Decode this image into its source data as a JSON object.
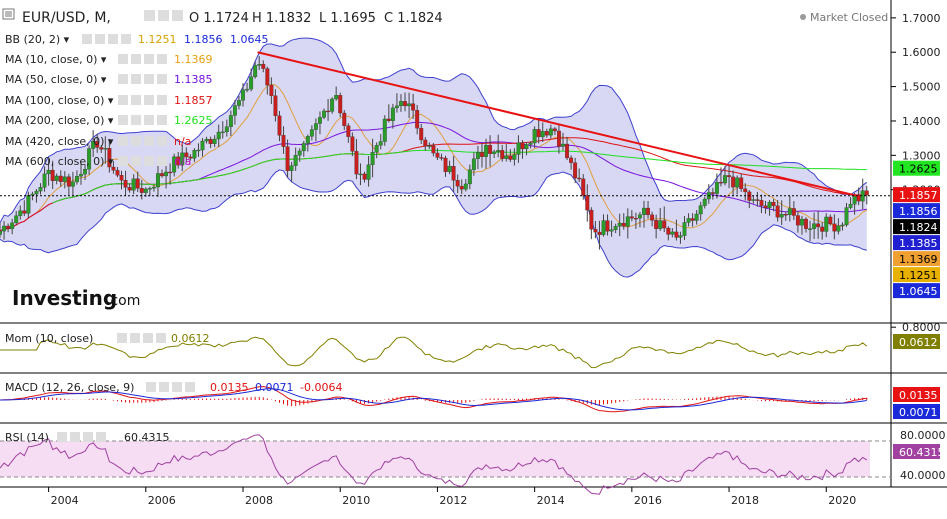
{
  "header": {
    "symbol": "EUR/USD, M,",
    "open": "O 1.1724",
    "high": "H 1.1832",
    "low": "L 1.1695",
    "close": "C 1.1824",
    "market_status": "Market Closed"
  },
  "indicators": [
    {
      "label": "BB (20, 2)",
      "values": [
        {
          "text": "1.1251",
          "color": "#d7a300"
        },
        {
          "text": "1.1856",
          "color": "#1a2ad8"
        },
        {
          "text": "1.0645",
          "color": "#1a2ad8"
        }
      ]
    },
    {
      "label": "MA (10, close, 0)",
      "values": [
        {
          "text": "1.1369",
          "color": "#e7a00f"
        }
      ]
    },
    {
      "label": "MA (50, close, 0)",
      "values": [
        {
          "text": "1.1385",
          "color": "#7a14e0"
        }
      ]
    },
    {
      "label": "MA (100, close, 0)",
      "values": [
        {
          "text": "1.1857",
          "color": "#e01313"
        }
      ]
    },
    {
      "label": "MA (200, close, 0)",
      "values": [
        {
          "text": "1.2625",
          "color": "#1fe01f"
        }
      ]
    },
    {
      "label": "MA (420, close, 0)",
      "values": [
        {
          "text": "n/a",
          "color": "#e01313"
        }
      ]
    },
    {
      "label": "MA (600, close, 0)",
      "values": [
        {
          "text": "n/a",
          "color": "#c013c0"
        }
      ]
    }
  ],
  "logo": {
    "brand": "Investing",
    "suffix": ".com"
  },
  "price_axis": {
    "ticks": [
      "1.7000",
      "1.6000",
      "1.5000",
      "1.4000",
      "1.3000",
      "1.2000",
      "0.8000"
    ]
  },
  "price_tags": [
    {
      "text": "1.2625",
      "bg": "#22e622",
      "fg": "#000000",
      "value": 1.2625
    },
    {
      "text": "1.1857",
      "bg": "#e81212",
      "fg": "#ffffff",
      "value": 1.1857
    },
    {
      "text": "1.1856",
      "bg": "#1a2ad8",
      "fg": "#ffffff",
      "value": 1.1856
    },
    {
      "text": "1.1824",
      "bg": "#000000",
      "fg": "#ffffff",
      "value": 1.1824
    },
    {
      "text": "1.1385",
      "bg": "#2020d0",
      "fg": "#ffffff",
      "value": 1.1385
    },
    {
      "text": "1.1369",
      "bg": "#f0a030",
      "fg": "#000000",
      "value": 1.1369
    },
    {
      "text": "1.1251",
      "bg": "#e8b000",
      "fg": "#000000",
      "value": 1.1251
    },
    {
      "text": "1.0645",
      "bg": "#1a2ad8",
      "fg": "#ffffff",
      "value": 1.0645
    }
  ],
  "mom": {
    "label": "Mom (10, close)",
    "value": "0.0612",
    "color": "#808000"
  },
  "macd": {
    "label": "MACD (12, 26, close, 9)",
    "values": [
      {
        "text": "0.0135",
        "color": "#e01313"
      },
      {
        "text": "0.0071",
        "color": "#1a2ad8"
      },
      {
        "text": "-0.0064",
        "color": "#e01313"
      }
    ],
    "tag_top": "0.0135",
    "tag_bottom": "0.0071"
  },
  "rsi": {
    "label": "RSI (14)",
    "value": "60.4315",
    "ticks": [
      "80.0000",
      "40.0000"
    ],
    "color": "#a040a0"
  },
  "x_axis": {
    "labels": [
      "2004",
      "2006",
      "2008",
      "2010",
      "2012",
      "2014",
      "2016",
      "2018",
      "2020"
    ]
  },
  "colors": {
    "trendline": "#e81212",
    "bb_fill": "#c8c8f0",
    "bb_line": "#4040d0",
    "ma10": "#e0a040",
    "ma50": "#7a14e0",
    "ma100": "#e01313",
    "ma200": "#1fe01f"
  },
  "chart_data": {
    "type": "candlestick",
    "timeframe": "monthly",
    "symbol": "EUR/USD",
    "x_range": [
      2003.0,
      2020.9
    ],
    "ylim": [
      0.8,
      1.7
    ],
    "key_points": [
      {
        "x": 2003.0,
        "y": 1.08
      },
      {
        "x": 2003.5,
        "y": 1.15
      },
      {
        "x": 2004.0,
        "y": 1.25
      },
      {
        "x": 2004.5,
        "y": 1.22
      },
      {
        "x": 2005.0,
        "y": 1.34
      },
      {
        "x": 2005.5,
        "y": 1.22
      },
      {
        "x": 2006.0,
        "y": 1.2
      },
      {
        "x": 2006.5,
        "y": 1.27
      },
      {
        "x": 2007.0,
        "y": 1.31
      },
      {
        "x": 2007.5,
        "y": 1.37
      },
      {
        "x": 2008.0,
        "y": 1.47
      },
      {
        "x": 2008.3,
        "y": 1.58
      },
      {
        "x": 2008.6,
        "y": 1.47
      },
      {
        "x": 2008.9,
        "y": 1.27
      },
      {
        "x": 2009.2,
        "y": 1.3
      },
      {
        "x": 2009.9,
        "y": 1.49
      },
      {
        "x": 2010.4,
        "y": 1.22
      },
      {
        "x": 2010.9,
        "y": 1.38
      },
      {
        "x": 2011.3,
        "y": 1.47
      },
      {
        "x": 2011.9,
        "y": 1.3
      },
      {
        "x": 2012.5,
        "y": 1.22
      },
      {
        "x": 2013.0,
        "y": 1.33
      },
      {
        "x": 2013.5,
        "y": 1.3
      },
      {
        "x": 2014.0,
        "y": 1.37
      },
      {
        "x": 2014.4,
        "y": 1.38
      },
      {
        "x": 2014.9,
        "y": 1.22
      },
      {
        "x": 2015.2,
        "y": 1.08
      },
      {
        "x": 2015.7,
        "y": 1.11
      },
      {
        "x": 2016.3,
        "y": 1.13
      },
      {
        "x": 2016.9,
        "y": 1.05
      },
      {
        "x": 2017.5,
        "y": 1.16
      },
      {
        "x": 2018.0,
        "y": 1.24
      },
      {
        "x": 2018.5,
        "y": 1.16
      },
      {
        "x": 2019.0,
        "y": 1.14
      },
      {
        "x": 2019.6,
        "y": 1.1
      },
      {
        "x": 2020.0,
        "y": 1.1
      },
      {
        "x": 2020.3,
        "y": 1.1
      },
      {
        "x": 2020.5,
        "y": 1.17
      },
      {
        "x": 2020.8,
        "y": 1.18
      }
    ],
    "trendline": [
      {
        "x": 2008.3,
        "y": 1.6
      },
      {
        "x": 2020.7,
        "y": 1.18
      }
    ],
    "ma200_start": 2004.0,
    "last_close": 1.1824
  }
}
